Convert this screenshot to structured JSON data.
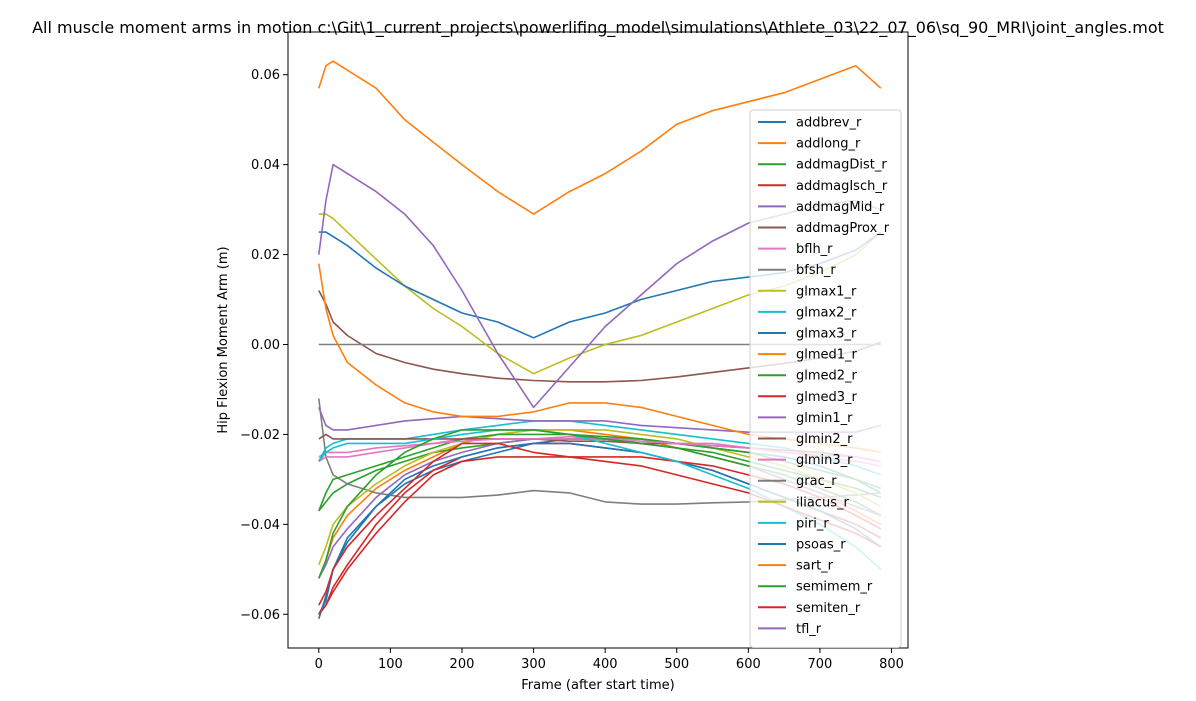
{
  "chart_data": {
    "type": "line",
    "title": "All muscle moment arms in motion c:\\Git\\1_current_projects\\powerlifing_model\\simulations\\Athlete_03\\22_07_06\\sq_90_MRI\\joint_angles.mot",
    "xlabel": "Frame (after start time)",
    "ylabel": "Hip Flexion Moment Arm (m)",
    "xlim": [
      -43,
      823
    ],
    "ylim": [
      -0.0675,
      0.0695
    ],
    "xticks": [
      0,
      100,
      200,
      300,
      400,
      500,
      600,
      700,
      800
    ],
    "xtick_labels": [
      "0",
      "100",
      "200",
      "300",
      "400",
      "500",
      "600",
      "700",
      "800"
    ],
    "yticks": [
      -0.06,
      -0.04,
      -0.02,
      0.0,
      0.02,
      0.04,
      0.06
    ],
    "ytick_labels": [
      "−0.06",
      "−0.04",
      "−0.02",
      "0.00",
      "0.02",
      "0.04",
      "0.06"
    ],
    "legend_position": "right",
    "grid": false,
    "x": [
      0,
      10,
      20,
      40,
      80,
      120,
      160,
      200,
      250,
      300,
      350,
      400,
      450,
      500,
      550,
      600,
      650,
      700,
      750,
      785
    ],
    "series": [
      {
        "name": "addbrev_r",
        "color": "#1f77b4",
        "values": [
          -0.06,
          -0.057,
          -0.05,
          -0.043,
          -0.036,
          -0.031,
          -0.028,
          -0.026,
          -0.024,
          -0.022,
          -0.021,
          -0.021,
          -0.021,
          -0.022,
          -0.023,
          -0.024,
          -0.025,
          -0.027,
          -0.03,
          -0.033
        ]
      },
      {
        "name": "addlong_r",
        "color": "#ff7f0e",
        "values": [
          -0.052,
          -0.048,
          -0.043,
          -0.038,
          -0.032,
          -0.028,
          -0.025,
          -0.022,
          -0.02,
          -0.019,
          -0.019,
          -0.02,
          -0.021,
          -0.023,
          -0.025,
          -0.027,
          -0.03,
          -0.033,
          -0.037,
          -0.04
        ]
      },
      {
        "name": "addmagDist_r",
        "color": "#2ca02c",
        "values": [
          -0.037,
          -0.035,
          -0.033,
          -0.031,
          -0.028,
          -0.026,
          -0.024,
          -0.023,
          -0.022,
          -0.021,
          -0.021,
          -0.021,
          -0.022,
          -0.023,
          -0.024,
          -0.026,
          -0.028,
          -0.03,
          -0.032,
          -0.034
        ]
      },
      {
        "name": "addmagIsch_r",
        "color": "#d62728",
        "values": [
          -0.06,
          -0.058,
          -0.054,
          -0.049,
          -0.04,
          -0.033,
          -0.028,
          -0.025,
          -0.023,
          -0.022,
          -0.022,
          -0.023,
          -0.024,
          -0.026,
          -0.028,
          -0.031,
          -0.034,
          -0.037,
          -0.04,
          -0.043
        ]
      },
      {
        "name": "addmagMid_r",
        "color": "#9467bd",
        "values": [
          -0.052,
          -0.049,
          -0.045,
          -0.041,
          -0.034,
          -0.029,
          -0.026,
          -0.024,
          -0.022,
          -0.021,
          -0.021,
          -0.021,
          -0.022,
          -0.023,
          -0.025,
          -0.027,
          -0.03,
          -0.033,
          -0.036,
          -0.038
        ]
      },
      {
        "name": "addmagProx_r",
        "color": "#8c564b",
        "values": [
          0.012,
          0.009,
          0.005,
          0.002,
          -0.002,
          -0.004,
          -0.0055,
          -0.0065,
          -0.0075,
          -0.008,
          -0.0083,
          -0.0083,
          -0.008,
          -0.0072,
          -0.0062,
          -0.0052,
          -0.0042,
          -0.003,
          -0.0015,
          0.0005
        ]
      },
      {
        "name": "bflh_r",
        "color": "#e377c2",
        "values": [
          -0.025,
          -0.024,
          -0.024,
          -0.024,
          -0.023,
          -0.0225,
          -0.022,
          -0.021,
          -0.021,
          -0.021,
          -0.0205,
          -0.021,
          -0.021,
          -0.022,
          -0.022,
          -0.023,
          -0.024,
          -0.025,
          -0.026,
          -0.027
        ]
      },
      {
        "name": "bfsh_r",
        "color": "#7f7f7f",
        "values": [
          -0.012,
          -0.025,
          -0.029,
          -0.031,
          -0.033,
          -0.034,
          -0.034,
          -0.034,
          -0.0335,
          -0.0325,
          -0.033,
          -0.035,
          -0.0355,
          -0.0355,
          -0.0352,
          -0.035,
          -0.0345,
          -0.034,
          -0.0335,
          -0.033
        ]
      },
      {
        "name": "glmax1_r",
        "color": "#bcbd22",
        "values": [
          -0.049,
          -0.045,
          -0.04,
          -0.036,
          -0.031,
          -0.027,
          -0.024,
          -0.022,
          -0.02,
          -0.019,
          -0.019,
          -0.019,
          -0.02,
          -0.021,
          -0.023,
          -0.025,
          -0.027,
          -0.03,
          -0.033,
          -0.036
        ]
      },
      {
        "name": "glmax2_r",
        "color": "#17becf",
        "values": [
          -0.026,
          -0.023,
          -0.022,
          -0.021,
          -0.021,
          -0.021,
          -0.02,
          -0.019,
          -0.018,
          -0.017,
          -0.017,
          -0.018,
          -0.019,
          -0.02,
          -0.021,
          -0.022,
          -0.023,
          -0.025,
          -0.027,
          -0.029
        ]
      },
      {
        "name": "glmax3_r",
        "color": "#1f77b4",
        "values": [
          -0.061,
          -0.056,
          -0.05,
          -0.044,
          -0.036,
          -0.03,
          -0.027,
          -0.025,
          -0.023,
          -0.022,
          -0.022,
          -0.023,
          -0.024,
          -0.026,
          -0.028,
          -0.031,
          -0.034,
          -0.037,
          -0.041,
          -0.045
        ]
      },
      {
        "name": "glmed1_r",
        "color": "#ff7f0e",
        "values": [
          0.057,
          0.062,
          0.063,
          0.061,
          0.057,
          0.05,
          0.045,
          0.04,
          0.034,
          0.029,
          0.034,
          0.038,
          0.043,
          0.049,
          0.052,
          0.054,
          0.056,
          0.059,
          0.062,
          0.057
        ]
      },
      {
        "name": "glmed2_r",
        "color": "#2ca02c",
        "values": [
          -0.037,
          -0.033,
          -0.03,
          -0.029,
          -0.027,
          -0.025,
          -0.023,
          -0.021,
          -0.02,
          -0.02,
          -0.02,
          -0.0205,
          -0.021,
          -0.022,
          -0.023,
          -0.024,
          -0.026,
          -0.028,
          -0.03,
          -0.032
        ]
      },
      {
        "name": "glmed3_r",
        "color": "#d62728",
        "values": [
          -0.058,
          -0.055,
          -0.05,
          -0.045,
          -0.038,
          -0.032,
          -0.026,
          -0.022,
          -0.022,
          -0.024,
          -0.025,
          -0.025,
          -0.025,
          -0.026,
          -0.027,
          -0.029,
          -0.031,
          -0.034,
          -0.038,
          -0.041
        ]
      },
      {
        "name": "glmin1_r",
        "color": "#9467bd",
        "values": [
          -0.014,
          -0.018,
          -0.019,
          -0.019,
          -0.018,
          -0.017,
          -0.0165,
          -0.016,
          -0.0165,
          -0.017,
          -0.017,
          -0.017,
          -0.018,
          -0.0185,
          -0.019,
          -0.0195,
          -0.0195,
          -0.0195,
          -0.0195,
          -0.018
        ]
      },
      {
        "name": "glmin2_r",
        "color": "#8c564b",
        "values": [
          -0.021,
          -0.02,
          -0.021,
          -0.021,
          -0.021,
          -0.021,
          -0.021,
          -0.021,
          -0.021,
          -0.021,
          -0.0215,
          -0.0215,
          -0.022,
          -0.022,
          -0.0225,
          -0.023,
          -0.0235,
          -0.024,
          -0.025,
          -0.026
        ]
      },
      {
        "name": "glmin3_r",
        "color": "#e377c2",
        "values": [
          -0.026,
          -0.025,
          -0.025,
          -0.025,
          -0.024,
          -0.023,
          -0.022,
          -0.0215,
          -0.021,
          -0.021,
          -0.021,
          -0.021,
          -0.0215,
          -0.022,
          -0.0225,
          -0.023,
          -0.024,
          -0.0245,
          -0.025,
          -0.026
        ]
      },
      {
        "name": "grac_r",
        "color": "#7f7f7f",
        "values": [
          0.0,
          0.0,
          0.0,
          0.0,
          0.0,
          0.0,
          0.0,
          0.0,
          0.0,
          0.0,
          0.0,
          0.0,
          0.0,
          0.0,
          0.0,
          0.0,
          0.0,
          0.0,
          0.0,
          0.0
        ]
      },
      {
        "name": "iliacus_r",
        "color": "#bcbd22",
        "values": [
          0.029,
          0.029,
          0.028,
          0.025,
          0.019,
          0.013,
          0.008,
          0.004,
          -0.002,
          -0.0065,
          -0.003,
          0.0,
          0.002,
          0.005,
          0.008,
          0.011,
          0.013,
          0.016,
          0.02,
          0.025
        ]
      },
      {
        "name": "piri_r",
        "color": "#17becf",
        "values": [
          -0.026,
          -0.024,
          -0.023,
          -0.022,
          -0.022,
          -0.022,
          -0.021,
          -0.02,
          -0.019,
          -0.019,
          -0.02,
          -0.022,
          -0.024,
          -0.026,
          -0.029,
          -0.032,
          -0.036,
          -0.04,
          -0.045,
          -0.05
        ]
      },
      {
        "name": "psoas_r",
        "color": "#1f77b4",
        "values": [
          0.025,
          0.025,
          0.024,
          0.022,
          0.017,
          0.013,
          0.01,
          0.007,
          0.005,
          0.0015,
          0.005,
          0.007,
          0.01,
          0.012,
          0.014,
          0.015,
          0.016,
          0.018,
          0.021,
          0.025
        ]
      },
      {
        "name": "sart_r",
        "color": "#ff7f0e",
        "values": [
          0.018,
          0.008,
          0.002,
          -0.004,
          -0.009,
          -0.013,
          -0.015,
          -0.016,
          -0.016,
          -0.015,
          -0.013,
          -0.013,
          -0.014,
          -0.016,
          -0.018,
          -0.02,
          -0.021,
          -0.022,
          -0.023,
          -0.024
        ]
      },
      {
        "name": "semimem_r",
        "color": "#2ca02c",
        "values": [
          -0.052,
          -0.048,
          -0.042,
          -0.036,
          -0.029,
          -0.024,
          -0.021,
          -0.019,
          -0.019,
          -0.019,
          -0.02,
          -0.021,
          -0.022,
          -0.023,
          -0.025,
          -0.027,
          -0.029,
          -0.032,
          -0.035,
          -0.038
        ]
      },
      {
        "name": "semiten_r",
        "color": "#d62728",
        "values": [
          -0.06,
          -0.058,
          -0.055,
          -0.05,
          -0.042,
          -0.035,
          -0.029,
          -0.026,
          -0.025,
          -0.025,
          -0.025,
          -0.026,
          -0.027,
          -0.029,
          -0.031,
          -0.033,
          -0.036,
          -0.039,
          -0.042,
          -0.045
        ]
      },
      {
        "name": "tfl_r",
        "color": "#9467bd",
        "values": [
          0.02,
          0.032,
          0.04,
          0.038,
          0.034,
          0.029,
          0.022,
          0.012,
          -0.002,
          -0.014,
          -0.005,
          0.004,
          0.011,
          0.018,
          0.023,
          0.027,
          0.029,
          0.031,
          0.032,
          0.03
        ]
      }
    ]
  }
}
